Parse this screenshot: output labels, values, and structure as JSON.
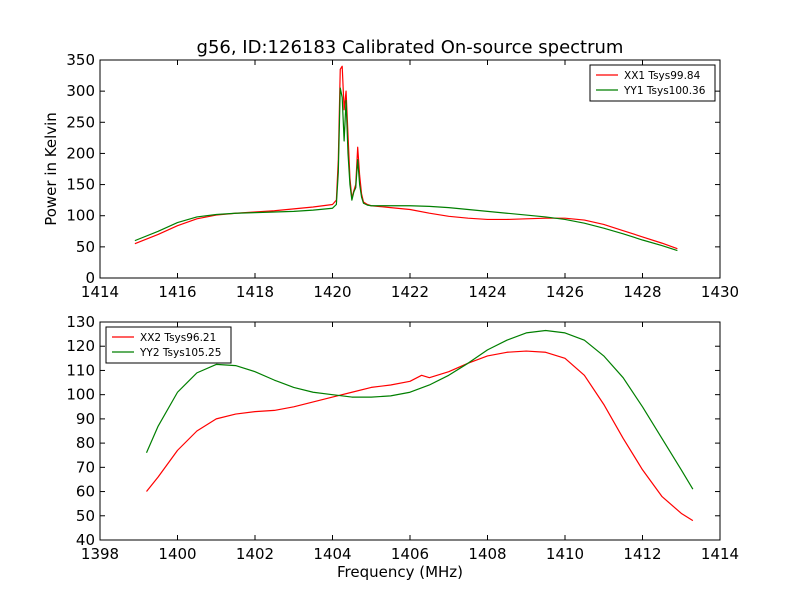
{
  "title": "g56, ID:126183 Calibrated On-source spectrum",
  "colors": {
    "red": "#ff0000",
    "green": "#007f00"
  },
  "chart_data": [
    {
      "type": "line",
      "ylabel": "Power in Kelvin",
      "xlabel": "",
      "xlim": [
        1414,
        1430
      ],
      "ylim": [
        0,
        350
      ],
      "xticks": [
        1414,
        1416,
        1418,
        1420,
        1422,
        1424,
        1426,
        1428,
        1430
      ],
      "yticks": [
        0,
        50,
        100,
        150,
        200,
        250,
        300,
        350
      ],
      "legend_position": "top-right",
      "series": [
        {
          "name": "XX1 Tsys99.84",
          "color": "#ff0000",
          "x": [
            1414.9,
            1415.5,
            1416,
            1416.5,
            1417,
            1417.5,
            1418,
            1418.5,
            1419,
            1419.5,
            1420,
            1420.1,
            1420.15,
            1420.2,
            1420.25,
            1420.3,
            1420.35,
            1420.4,
            1420.45,
            1420.5,
            1420.55,
            1420.6,
            1420.65,
            1420.7,
            1420.75,
            1420.8,
            1420.9,
            1421,
            1421.5,
            1422,
            1422.5,
            1423,
            1423.5,
            1424,
            1424.5,
            1425,
            1425.5,
            1426,
            1426.5,
            1427,
            1427.5,
            1428,
            1428.5,
            1428.9
          ],
          "y": [
            55,
            70,
            84,
            95,
            101,
            104,
            106,
            108,
            111,
            114,
            118,
            125,
            190,
            335,
            340,
            270,
            300,
            230,
            160,
            128,
            140,
            150,
            210,
            165,
            135,
            122,
            118,
            116,
            113,
            110,
            104,
            99,
            96,
            94,
            94,
            95,
            96,
            96,
            93,
            86,
            76,
            66,
            56,
            47
          ]
        },
        {
          "name": "YY1 Tsys100.36",
          "color": "#007f00",
          "x": [
            1414.9,
            1415.5,
            1416,
            1416.5,
            1417,
            1417.5,
            1418,
            1418.5,
            1419,
            1419.5,
            1420,
            1420.1,
            1420.15,
            1420.2,
            1420.25,
            1420.3,
            1420.35,
            1420.4,
            1420.45,
            1420.5,
            1420.55,
            1420.6,
            1420.65,
            1420.7,
            1420.75,
            1420.8,
            1420.9,
            1421,
            1421.5,
            1422,
            1422.5,
            1423,
            1423.5,
            1424,
            1424.5,
            1425,
            1425.5,
            1426,
            1426.5,
            1427,
            1427.5,
            1428,
            1428.5,
            1428.9
          ],
          "y": [
            60,
            75,
            89,
            98,
            102,
            104,
            105,
            106,
            107,
            109,
            112,
            118,
            170,
            305,
            290,
            220,
            285,
            200,
            150,
            125,
            138,
            145,
            190,
            150,
            130,
            120,
            117,
            116,
            116,
            116,
            115,
            113,
            110,
            107,
            104,
            101,
            98,
            94,
            88,
            80,
            71,
            61,
            52,
            44
          ]
        }
      ]
    },
    {
      "type": "line",
      "xlabel": "Frequency (MHz)",
      "ylabel": "",
      "xlim": [
        1398,
        1414
      ],
      "ylim": [
        40,
        130
      ],
      "xticks": [
        1398,
        1400,
        1402,
        1404,
        1406,
        1408,
        1410,
        1412,
        1414
      ],
      "yticks": [
        40,
        50,
        60,
        70,
        80,
        90,
        100,
        110,
        120,
        130
      ],
      "legend_position": "top-left",
      "series": [
        {
          "name": "XX2 Tsys96.21",
          "color": "#ff0000",
          "x": [
            1399.2,
            1399.5,
            1400,
            1400.5,
            1401,
            1401.5,
            1402,
            1402.5,
            1403,
            1403.5,
            1404,
            1404.5,
            1405,
            1405.5,
            1406,
            1406.3,
            1406.5,
            1407,
            1407.5,
            1408,
            1408.5,
            1409,
            1409.5,
            1410,
            1410.5,
            1411,
            1411.5,
            1412,
            1412.5,
            1413,
            1413.3
          ],
          "y": [
            60,
            66,
            77,
            85,
            90,
            92,
            93,
            93.5,
            95,
            97,
            99,
            101,
            103,
            104,
            105.5,
            108,
            107,
            109.5,
            113,
            116,
            117.5,
            118,
            117.5,
            115,
            108,
            96,
            82,
            69,
            58,
            51,
            48
          ]
        },
        {
          "name": "YY2 Tsys105.25",
          "color": "#007f00",
          "x": [
            1399.2,
            1399.5,
            1400,
            1400.5,
            1401,
            1401.5,
            1402,
            1402.5,
            1403,
            1403.5,
            1404,
            1404.5,
            1405,
            1405.5,
            1406,
            1406.5,
            1407,
            1407.5,
            1408,
            1408.5,
            1409,
            1409.5,
            1410,
            1410.5,
            1411,
            1411.5,
            1412,
            1412.5,
            1413,
            1413.3
          ],
          "y": [
            76,
            87,
            101,
            109,
            112.5,
            112,
            109.5,
            106,
            103,
            101,
            100,
            99,
            99,
            99.5,
            101,
            104,
            108,
            113,
            118.5,
            122.5,
            125.5,
            126.5,
            125.5,
            122.5,
            116,
            107,
            95,
            82,
            69,
            61
          ]
        }
      ]
    }
  ]
}
